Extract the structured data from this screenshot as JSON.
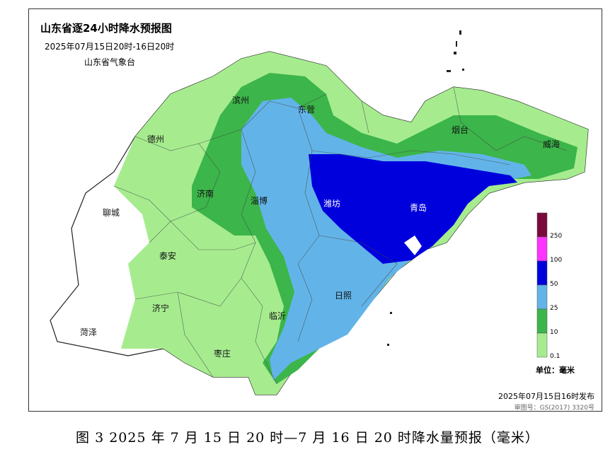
{
  "map": {
    "title": "山东省逐24小时降水预报图",
    "subtitle": "2025年07月15日20时-16日20时",
    "agency": "山东省气象台",
    "issue_time": "2025年07月15日16时发布",
    "approval_number": "审图号：GS(2017) 3320号",
    "cities": [
      "滨州",
      "东营",
      "德州",
      "烟台",
      "威海",
      "济南",
      "淄博",
      "潍坊",
      "青岛",
      "聊城",
      "泰安",
      "日照",
      "济宁",
      "临沂",
      "菏泽",
      "枣庄"
    ],
    "legend": {
      "unit": "单位：毫米",
      "ticks": [
        "250",
        "100",
        "50",
        "25",
        "10",
        "0.1"
      ],
      "colors": [
        "#7a0a3c",
        "#ff33ff",
        "#0000dd",
        "#62b4e8",
        "#3cb54a",
        "#a6ec8f"
      ]
    }
  },
  "caption": "图 3  2025 年 7 月 15 日 20 时—7 月 16 日 20 时降水量预报（毫米）"
}
